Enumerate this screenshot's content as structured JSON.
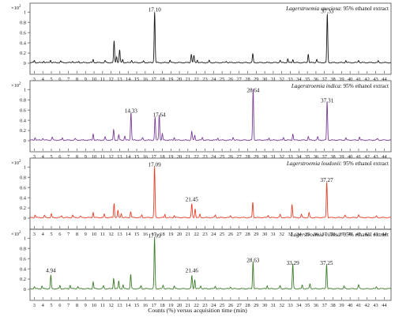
{
  "chart_data": {
    "type": "line",
    "xlabel": "Counts (%) versus acquisition time (min)",
    "x_ticks": [
      3,
      4,
      5,
      6,
      7,
      8,
      9,
      10,
      11,
      12,
      13,
      14,
      15,
      16,
      17,
      18,
      19,
      20,
      21,
      22,
      23,
      24,
      25,
      26,
      27,
      28,
      29,
      30,
      31,
      32,
      33,
      34,
      35,
      36,
      37,
      38,
      39,
      40,
      41,
      42,
      43,
      44
    ],
    "xlim": [
      2.5,
      44.8
    ],
    "ylim": [
      0,
      1.05
    ],
    "y_ticks": [
      0,
      0.2,
      0.4,
      0.6,
      0.8,
      1
    ],
    "y_tick_labels": [
      "0",
      "0.2",
      "0.4",
      "0.6",
      "0.8",
      "1"
    ],
    "y_multiplier": "×10",
    "y_multiplier_exp": "2",
    "panels": [
      {
        "title_italic": "Lagerstroemia speciosa",
        "title_rest": ": 95% ethanol extract",
        "color": "#1a1a1a",
        "annotations": [
          {
            "label": "17.10",
            "x": 17.1,
            "y": 0.98
          },
          {
            "label": "37.33",
            "x": 37.33,
            "y": 0.95
          }
        ],
        "peaks": [
          [
            3.0,
            0.04
          ],
          [
            4.1,
            0.03
          ],
          [
            4.9,
            0.05
          ],
          [
            6.1,
            0.03
          ],
          [
            7.5,
            0.03
          ],
          [
            8.2,
            0.02
          ],
          [
            9.9,
            0.06
          ],
          [
            11.3,
            0.04
          ],
          [
            12.35,
            0.42
          ],
          [
            12.65,
            0.12
          ],
          [
            13.0,
            0.25
          ],
          [
            13.35,
            0.06
          ],
          [
            14.4,
            0.05
          ],
          [
            15.8,
            0.03
          ],
          [
            17.1,
            1.0
          ],
          [
            18.9,
            0.05
          ],
          [
            21.4,
            0.17
          ],
          [
            21.7,
            0.14
          ],
          [
            22.1,
            0.05
          ],
          [
            23.5,
            0.04
          ],
          [
            25.5,
            0.03
          ],
          [
            28.6,
            0.17
          ],
          [
            31.8,
            0.05
          ],
          [
            32.7,
            0.07
          ],
          [
            33.3,
            0.06
          ],
          [
            35.1,
            0.17
          ],
          [
            36.1,
            0.07
          ],
          [
            37.33,
            0.95
          ],
          [
            39.5,
            0.04
          ],
          [
            41.0,
            0.05
          ],
          [
            43.3,
            0.03
          ]
        ]
      },
      {
        "title_italic": "Lagerstroemia indica",
        "title_rest": ": 95% ethanol extract",
        "color": "#7b3f98",
        "annotations": [
          {
            "label": "14.33",
            "x": 14.33,
            "y": 0.52
          },
          {
            "label": "17.64",
            "x": 17.64,
            "y": 0.44
          },
          {
            "label": "28.64",
            "x": 28.64,
            "y": 0.92
          },
          {
            "label": "37.31",
            "x": 37.31,
            "y": 0.72
          }
        ],
        "peaks": [
          [
            3.1,
            0.05
          ],
          [
            4.0,
            0.04
          ],
          [
            5.1,
            0.06
          ],
          [
            6.3,
            0.04
          ],
          [
            7.8,
            0.03
          ],
          [
            9.9,
            0.12
          ],
          [
            11.3,
            0.06
          ],
          [
            12.3,
            0.2
          ],
          [
            12.9,
            0.1
          ],
          [
            13.6,
            0.08
          ],
          [
            14.33,
            0.55
          ],
          [
            15.7,
            0.05
          ],
          [
            17.15,
            0.45
          ],
          [
            17.64,
            0.5
          ],
          [
            18.0,
            0.12
          ],
          [
            19.4,
            0.05
          ],
          [
            21.45,
            0.17
          ],
          [
            21.8,
            0.09
          ],
          [
            22.7,
            0.05
          ],
          [
            24.5,
            0.04
          ],
          [
            26.3,
            0.06
          ],
          [
            28.64,
            1.0
          ],
          [
            30.5,
            0.04
          ],
          [
            32.2,
            0.05
          ],
          [
            33.3,
            0.12
          ],
          [
            35.1,
            0.07
          ],
          [
            36.2,
            0.06
          ],
          [
            37.31,
            0.75
          ],
          [
            39.5,
            0.04
          ],
          [
            41.1,
            0.06
          ],
          [
            43.2,
            0.03
          ]
        ]
      },
      {
        "title_italic": "Lagerstroemia loudonii",
        "title_rest": ": 95% ethanol extract",
        "color": "#e8402a",
        "annotations": [
          {
            "label": "17.09",
            "x": 17.09,
            "y": 0.98
          },
          {
            "label": "21.45",
            "x": 21.45,
            "y": 0.3
          },
          {
            "label": "37.27",
            "x": 37.27,
            "y": 0.68
          }
        ],
        "peaks": [
          [
            3.1,
            0.05
          ],
          [
            4.2,
            0.04
          ],
          [
            5.0,
            0.07
          ],
          [
            6.2,
            0.04
          ],
          [
            7.5,
            0.05
          ],
          [
            8.4,
            0.03
          ],
          [
            9.9,
            0.1
          ],
          [
            11.2,
            0.06
          ],
          [
            12.35,
            0.28
          ],
          [
            12.8,
            0.14
          ],
          [
            13.2,
            0.08
          ],
          [
            14.3,
            0.12
          ],
          [
            15.6,
            0.05
          ],
          [
            17.09,
            1.0
          ],
          [
            18.3,
            0.06
          ],
          [
            19.4,
            0.04
          ],
          [
            21.45,
            0.27
          ],
          [
            21.85,
            0.17
          ],
          [
            22.4,
            0.06
          ],
          [
            24.2,
            0.05
          ],
          [
            26.0,
            0.04
          ],
          [
            28.6,
            0.3
          ],
          [
            30.4,
            0.05
          ],
          [
            31.8,
            0.06
          ],
          [
            33.2,
            0.26
          ],
          [
            34.3,
            0.06
          ],
          [
            35.2,
            0.09
          ],
          [
            37.27,
            0.7
          ],
          [
            39.4,
            0.05
          ],
          [
            41.0,
            0.06
          ],
          [
            43.1,
            0.03
          ]
        ]
      },
      {
        "title_italic": "Lagerstroemia villosa",
        "title_rest": ": 95% ethanol extract",
        "color": "#3d7d2b",
        "annotations": [
          {
            "label": "4.94",
            "x": 4.94,
            "y": 0.3
          },
          {
            "label": "17.09",
            "x": 17.09,
            "y": 0.98
          },
          {
            "label": "21.46",
            "x": 21.46,
            "y": 0.3
          },
          {
            "label": "28.63",
            "x": 28.63,
            "y": 0.5
          },
          {
            "label": "33.29",
            "x": 33.29,
            "y": 0.45
          },
          {
            "label": "37.25",
            "x": 37.25,
            "y": 0.45
          }
        ],
        "peaks": [
          [
            3.0,
            0.04
          ],
          [
            3.9,
            0.05
          ],
          [
            4.94,
            0.26
          ],
          [
            6.0,
            0.06
          ],
          [
            7.2,
            0.07
          ],
          [
            8.1,
            0.05
          ],
          [
            9.9,
            0.13
          ],
          [
            11.1,
            0.06
          ],
          [
            12.3,
            0.2
          ],
          [
            12.9,
            0.15
          ],
          [
            13.4,
            0.07
          ],
          [
            14.3,
            0.28
          ],
          [
            15.5,
            0.06
          ],
          [
            17.09,
            1.0
          ],
          [
            18.1,
            0.07
          ],
          [
            19.4,
            0.05
          ],
          [
            21.46,
            0.26
          ],
          [
            21.8,
            0.18
          ],
          [
            22.5,
            0.06
          ],
          [
            24.2,
            0.05
          ],
          [
            26.0,
            0.04
          ],
          [
            28.63,
            0.53
          ],
          [
            30.3,
            0.06
          ],
          [
            31.8,
            0.06
          ],
          [
            33.29,
            0.48
          ],
          [
            34.4,
            0.07
          ],
          [
            35.3,
            0.1
          ],
          [
            37.25,
            0.48
          ],
          [
            39.3,
            0.05
          ],
          [
            41.0,
            0.08
          ],
          [
            43.1,
            0.04
          ]
        ]
      }
    ]
  }
}
